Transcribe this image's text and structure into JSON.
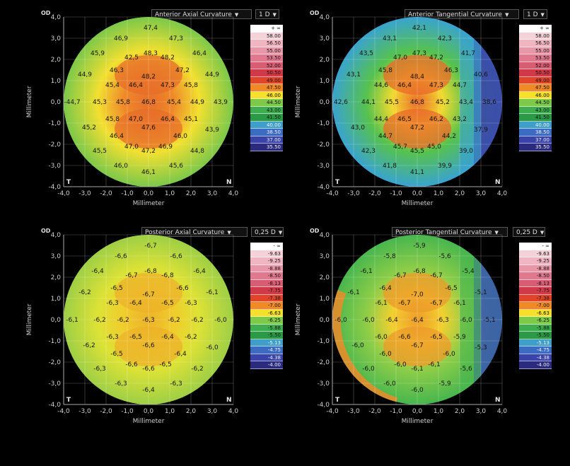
{
  "common": {
    "eye": "OD",
    "axis_label": "Millimeter",
    "corner_left": "T",
    "corner_right": "N",
    "ticks": [
      "-4,0",
      "-3,0",
      "-2,0",
      "-1,0",
      "0,0",
      "1,0",
      "2,0",
      "3,0",
      "4,0"
    ],
    "yticks": [
      "4,0",
      "3,0",
      "2,0",
      "1,0",
      "0,0",
      "-1,0",
      "-2,0",
      "-3,0",
      "-4,0"
    ]
  },
  "panels": [
    {
      "id": "anterior-axial",
      "map_type": "Anterior Axial Curvature",
      "step": "1 D",
      "scheme": "axial_ant",
      "legend": [
        "+ ∞",
        "58.00",
        "56.50",
        "55.00",
        "53.50",
        "52.00",
        "50.50",
        "49.00",
        "47.50",
        "46.00",
        "44.50",
        "43.00",
        "41.50",
        "40.00",
        "38.50",
        "37.00",
        "35.50"
      ],
      "values": [
        {
          "t": "47,4",
          "x": 0.1,
          "y": 3.5
        },
        {
          "t": "46,9",
          "x": -1.3,
          "y": 3.0
        },
        {
          "t": "47,3",
          "x": 1.3,
          "y": 3.0
        },
        {
          "t": "45,9",
          "x": -2.4,
          "y": 2.3
        },
        {
          "t": "48,3",
          "x": 0.1,
          "y": 2.3
        },
        {
          "t": "42,5",
          "x": -0.8,
          "y": 2.1
        },
        {
          "t": "48,2",
          "x": 0.9,
          "y": 2.1
        },
        {
          "t": "46,4",
          "x": 2.4,
          "y": 2.3
        },
        {
          "t": "46,3",
          "x": -1.5,
          "y": 1.5
        },
        {
          "t": "47,2",
          "x": 1.6,
          "y": 1.5
        },
        {
          "t": "44,9",
          "x": -3.0,
          "y": 1.3
        },
        {
          "t": "48,2",
          "x": 0.0,
          "y": 1.2
        },
        {
          "t": "44,9",
          "x": 3.0,
          "y": 1.3
        },
        {
          "t": "45,4",
          "x": -1.7,
          "y": 0.8
        },
        {
          "t": "46,4",
          "x": -0.6,
          "y": 0.8
        },
        {
          "t": "47,3",
          "x": 0.9,
          "y": 0.8
        },
        {
          "t": "45,8",
          "x": 2.0,
          "y": 0.8
        },
        {
          "t": "-44,7",
          "x": -3.6,
          "y": 0.0
        },
        {
          "t": "45,3",
          "x": -2.3,
          "y": 0.0
        },
        {
          "t": "45,8",
          "x": -1.2,
          "y": 0.0
        },
        {
          "t": "46,8",
          "x": 0.0,
          "y": 0.0
        },
        {
          "t": "45,4",
          "x": 1.2,
          "y": 0.0
        },
        {
          "t": "44,9",
          "x": 2.3,
          "y": 0.0
        },
        {
          "t": "43,9",
          "x": 3.4,
          "y": 0.0
        },
        {
          "t": "45,8",
          "x": -1.7,
          "y": -0.8
        },
        {
          "t": "47,0",
          "x": -0.6,
          "y": -0.8
        },
        {
          "t": "46,4",
          "x": 0.9,
          "y": -0.8
        },
        {
          "t": "45,1",
          "x": 2.0,
          "y": -0.8
        },
        {
          "t": "45,2",
          "x": -2.8,
          "y": -1.2
        },
        {
          "t": "47,6",
          "x": 0.0,
          "y": -1.2
        },
        {
          "t": "43,9",
          "x": 3.0,
          "y": -1.3
        },
        {
          "t": "46,4",
          "x": -1.5,
          "y": -1.6
        },
        {
          "t": "46,0",
          "x": 1.5,
          "y": -1.6
        },
        {
          "t": "45,5",
          "x": -2.3,
          "y": -2.3
        },
        {
          "t": "47,0",
          "x": -0.8,
          "y": -2.1
        },
        {
          "t": "47,2",
          "x": 0.0,
          "y": -2.3
        },
        {
          "t": "46,9",
          "x": 0.8,
          "y": -2.1
        },
        {
          "t": "44,8",
          "x": 2.3,
          "y": -2.3
        },
        {
          "t": "46,0",
          "x": -1.3,
          "y": -3.0
        },
        {
          "t": "45,6",
          "x": 1.3,
          "y": -3.0
        },
        {
          "t": "46,1",
          "x": 0.0,
          "y": -3.3
        }
      ]
    },
    {
      "id": "anterior-tangential",
      "map_type": "Anterior Tangential Curvature",
      "step": "1 D",
      "scheme": "tang_ant",
      "legend": [
        "+ ∞",
        "58.00",
        "56.50",
        "55.00",
        "53.50",
        "52.00",
        "50.50",
        "49.00",
        "47.50",
        "46.00",
        "44.50",
        "43.00",
        "41.50",
        "40.00",
        "38.50",
        "37.00",
        "35.50"
      ],
      "values": [
        {
          "t": "42,1",
          "x": 0.1,
          "y": 3.5
        },
        {
          "t": "43,1",
          "x": -1.3,
          "y": 3.0
        },
        {
          "t": "42,3",
          "x": 1.3,
          "y": 3.0
        },
        {
          "t": "43,5",
          "x": -2.4,
          "y": 2.3
        },
        {
          "t": "47,3",
          "x": 0.1,
          "y": 2.3
        },
        {
          "t": "47,0",
          "x": -0.8,
          "y": 2.1
        },
        {
          "t": "47,2",
          "x": 0.9,
          "y": 2.1
        },
        {
          "t": "41,7",
          "x": 2.4,
          "y": 2.3
        },
        {
          "t": "45,8",
          "x": -1.5,
          "y": 1.5
        },
        {
          "t": "46,3",
          "x": 1.6,
          "y": 1.5
        },
        {
          "t": "43,1",
          "x": -3.0,
          "y": 1.3
        },
        {
          "t": "48,4",
          "x": 0.0,
          "y": 1.2
        },
        {
          "t": "40,6",
          "x": 3.0,
          "y": 1.3
        },
        {
          "t": "44,6",
          "x": -1.7,
          "y": 0.8
        },
        {
          "t": "46,4",
          "x": -0.6,
          "y": 0.8
        },
        {
          "t": "47,3",
          "x": 0.9,
          "y": 0.8
        },
        {
          "t": "44,7",
          "x": 2.0,
          "y": 0.8
        },
        {
          "t": "42,6",
          "x": -3.6,
          "y": 0.0
        },
        {
          "t": "44,1",
          "x": -2.3,
          "y": 0.0
        },
        {
          "t": "45,5",
          "x": -1.2,
          "y": 0.0
        },
        {
          "t": "46,8",
          "x": 0.0,
          "y": 0.0
        },
        {
          "t": "45,2",
          "x": 1.2,
          "y": 0.0
        },
        {
          "t": "43,4",
          "x": 2.3,
          "y": 0.0
        },
        {
          "t": "38,6",
          "x": 3.4,
          "y": 0.0
        },
        {
          "t": "44,4",
          "x": -1.7,
          "y": -0.8
        },
        {
          "t": "46,5",
          "x": -0.6,
          "y": -0.8
        },
        {
          "t": "46,2",
          "x": 0.9,
          "y": -0.8
        },
        {
          "t": "43,2",
          "x": 2.0,
          "y": -0.8
        },
        {
          "t": "43,0",
          "x": -2.8,
          "y": -1.2
        },
        {
          "t": "47,2",
          "x": 0.0,
          "y": -1.2
        },
        {
          "t": "37,9",
          "x": 3.0,
          "y": -1.3
        },
        {
          "t": "44,7",
          "x": -1.5,
          "y": -1.6
        },
        {
          "t": "44,2",
          "x": 1.5,
          "y": -1.6
        },
        {
          "t": "42,3",
          "x": -2.3,
          "y": -2.3
        },
        {
          "t": "45,7",
          "x": -0.8,
          "y": -2.1
        },
        {
          "t": "45,5",
          "x": 0.0,
          "y": -2.3
        },
        {
          "t": "45,0",
          "x": 0.8,
          "y": -2.1
        },
        {
          "t": "39,0",
          "x": 2.3,
          "y": -2.3
        },
        {
          "t": "41,8",
          "x": -1.3,
          "y": -3.0
        },
        {
          "t": "39,9",
          "x": 1.3,
          "y": -3.0
        },
        {
          "t": "41,1",
          "x": 0.0,
          "y": -3.3
        }
      ]
    },
    {
      "id": "posterior-axial",
      "map_type": "Posterior Axial Curvature",
      "step": "0,25 D",
      "scheme": "axial_post",
      "legend": [
        "- ∞",
        "-9.63",
        "-9.25",
        "-8.88",
        "-8.50",
        "-8.13",
        "-7.75",
        "-7.38",
        "-7.00",
        "-6.63",
        "-6.25",
        "-5.88",
        "-5.50",
        "-5.13",
        "-4.75",
        "-4.38",
        "-4.00"
      ],
      "values": [
        {
          "t": "-6,7",
          "x": 0.1,
          "y": 3.5
        },
        {
          "t": "-6,6",
          "x": -1.3,
          "y": 3.0
        },
        {
          "t": "-6,6",
          "x": 1.3,
          "y": 3.0
        },
        {
          "t": "-6,4",
          "x": -2.4,
          "y": 2.3
        },
        {
          "t": "-6,8",
          "x": 0.1,
          "y": 2.3
        },
        {
          "t": "-6,7",
          "x": -0.8,
          "y": 2.1
        },
        {
          "t": "-6,8",
          "x": 0.9,
          "y": 2.1
        },
        {
          "t": "-6,4",
          "x": 2.4,
          "y": 2.3
        },
        {
          "t": "-6,5",
          "x": -1.5,
          "y": 1.5
        },
        {
          "t": "-6,6",
          "x": 1.6,
          "y": 1.5
        },
        {
          "t": "-6,2",
          "x": -3.0,
          "y": 1.3
        },
        {
          "t": "-6,7",
          "x": 0.0,
          "y": 1.2
        },
        {
          "t": "-6,1",
          "x": 3.0,
          "y": 1.3
        },
        {
          "t": "-6,3",
          "x": -1.7,
          "y": 0.8
        },
        {
          "t": "-6,4",
          "x": -0.6,
          "y": 0.8
        },
        {
          "t": "-6,5",
          "x": 0.9,
          "y": 0.8
        },
        {
          "t": "-6,3",
          "x": 2.0,
          "y": 0.8
        },
        {
          "t": "-6,1",
          "x": -3.6,
          "y": 0.0
        },
        {
          "t": "-6,2",
          "x": -2.3,
          "y": 0.0
        },
        {
          "t": "-6,2",
          "x": -1.2,
          "y": 0.0
        },
        {
          "t": "-6,3",
          "x": 0.0,
          "y": 0.0
        },
        {
          "t": "-6,2",
          "x": 1.2,
          "y": 0.0
        },
        {
          "t": "-6,2",
          "x": 2.3,
          "y": 0.0
        },
        {
          "t": "-6,0",
          "x": 3.4,
          "y": 0.0
        },
        {
          "t": "-6,3",
          "x": -1.7,
          "y": -0.8
        },
        {
          "t": "-6,5",
          "x": -0.6,
          "y": -0.8
        },
        {
          "t": "-6,4",
          "x": 0.9,
          "y": -0.8
        },
        {
          "t": "-6,2",
          "x": 2.0,
          "y": -0.8
        },
        {
          "t": "-6,2",
          "x": -2.8,
          "y": -1.2
        },
        {
          "t": "-6,6",
          "x": 0.0,
          "y": -1.2
        },
        {
          "t": "-6,0",
          "x": 3.0,
          "y": -1.3
        },
        {
          "t": "-6,5",
          "x": -1.5,
          "y": -1.6
        },
        {
          "t": "-6,4",
          "x": 1.5,
          "y": -1.6
        },
        {
          "t": "-6,3",
          "x": -2.3,
          "y": -2.3
        },
        {
          "t": "-6,6",
          "x": -0.8,
          "y": -2.1
        },
        {
          "t": "-6,6",
          "x": 0.0,
          "y": -2.3
        },
        {
          "t": "-6,5",
          "x": 0.8,
          "y": -2.1
        },
        {
          "t": "-6,2",
          "x": 2.3,
          "y": -2.3
        },
        {
          "t": "-6,3",
          "x": -1.3,
          "y": -3.0
        },
        {
          "t": "-6,3",
          "x": 1.3,
          "y": -3.0
        },
        {
          "t": "-6,4",
          "x": 0.0,
          "y": -3.3
        }
      ]
    },
    {
      "id": "posterior-tangential",
      "map_type": "Posterior Tangential Curvature",
      "step": "0,25 D",
      "scheme": "tang_post",
      "legend": [
        "- ∞",
        "-9.63",
        "-9.25",
        "-8.88",
        "-8.50",
        "-8.13",
        "-7.75",
        "-7.38",
        "-7.00",
        "-6.63",
        "-6.25",
        "-5.88",
        "-5.50",
        "-5.13",
        "-4.75",
        "-4.38",
        "-4.00"
      ],
      "values": [
        {
          "t": "-5,9",
          "x": 0.1,
          "y": 3.5
        },
        {
          "t": "-5,8",
          "x": -1.3,
          "y": 3.0
        },
        {
          "t": "-5,6",
          "x": 1.3,
          "y": 3.0
        },
        {
          "t": "-6,1",
          "x": -2.4,
          "y": 2.3
        },
        {
          "t": "-6,8",
          "x": 0.1,
          "y": 2.3
        },
        {
          "t": "-6,7",
          "x": -0.8,
          "y": 2.1
        },
        {
          "t": "-6,7",
          "x": 0.9,
          "y": 2.1
        },
        {
          "t": "-5,4",
          "x": 2.4,
          "y": 2.3
        },
        {
          "t": "-6,4",
          "x": -1.5,
          "y": 1.5
        },
        {
          "t": "-6,5",
          "x": 1.6,
          "y": 1.5
        },
        {
          "t": "-6,1",
          "x": -3.0,
          "y": 1.3
        },
        {
          "t": "-7,0",
          "x": 0.0,
          "y": 1.2
        },
        {
          "t": "-5,1",
          "x": 3.0,
          "y": 1.3
        },
        {
          "t": "-6,1",
          "x": -1.7,
          "y": 0.8
        },
        {
          "t": "-6,7",
          "x": -0.6,
          "y": 0.8
        },
        {
          "t": "-6,7",
          "x": 0.9,
          "y": 0.8
        },
        {
          "t": "-6,1",
          "x": 2.0,
          "y": 0.8
        },
        {
          "t": "-6,0",
          "x": -3.6,
          "y": 0.0
        },
        {
          "t": "-6,0",
          "x": -2.3,
          "y": 0.0
        },
        {
          "t": "-6,4",
          "x": -1.2,
          "y": 0.0
        },
        {
          "t": "-6,4",
          "x": 0.0,
          "y": 0.0
        },
        {
          "t": "-6,3",
          "x": 1.2,
          "y": 0.0
        },
        {
          "t": "-6,0",
          "x": 2.3,
          "y": 0.0
        },
        {
          "t": "-5,1",
          "x": 3.4,
          "y": 0.0
        },
        {
          "t": "-6,0",
          "x": -1.7,
          "y": -0.8
        },
        {
          "t": "-6,6",
          "x": -0.6,
          "y": -0.8
        },
        {
          "t": "-6,5",
          "x": 0.9,
          "y": -0.8
        },
        {
          "t": "-5,9",
          "x": 2.0,
          "y": -0.8
        },
        {
          "t": "-6,0",
          "x": -2.8,
          "y": -1.2
        },
        {
          "t": "-6,7",
          "x": 0.0,
          "y": -1.2
        },
        {
          "t": "-5,3",
          "x": 3.0,
          "y": -1.3
        },
        {
          "t": "-6,0",
          "x": -1.5,
          "y": -1.6
        },
        {
          "t": "-6,0",
          "x": 1.5,
          "y": -1.6
        },
        {
          "t": "-6,0",
          "x": -2.3,
          "y": -2.3
        },
        {
          "t": "-6,0",
          "x": -0.8,
          "y": -2.1
        },
        {
          "t": "-6,1",
          "x": 0.0,
          "y": -2.3
        },
        {
          "t": "-6,1",
          "x": 0.8,
          "y": -2.1
        },
        {
          "t": "-5,6",
          "x": 2.3,
          "y": -2.3
        },
        {
          "t": "-6,0",
          "x": -1.3,
          "y": -3.0
        },
        {
          "t": "-5,9",
          "x": 1.3,
          "y": -3.0
        },
        {
          "t": "-6,0",
          "x": 0.0,
          "y": -3.3
        }
      ]
    }
  ],
  "legend_colors": [
    "#ffffff",
    "#f4d2d8",
    "#efb6c2",
    "#e897a8",
    "#e0788f",
    "#d85c72",
    "#d03a48",
    "#e0452a",
    "#f08a26",
    "#f5e02c",
    "#7ec94a",
    "#3ead4f",
    "#2a9a46",
    "#3f9fc9",
    "#3c6cc1",
    "#3a44a8",
    "#2a2a7e"
  ]
}
